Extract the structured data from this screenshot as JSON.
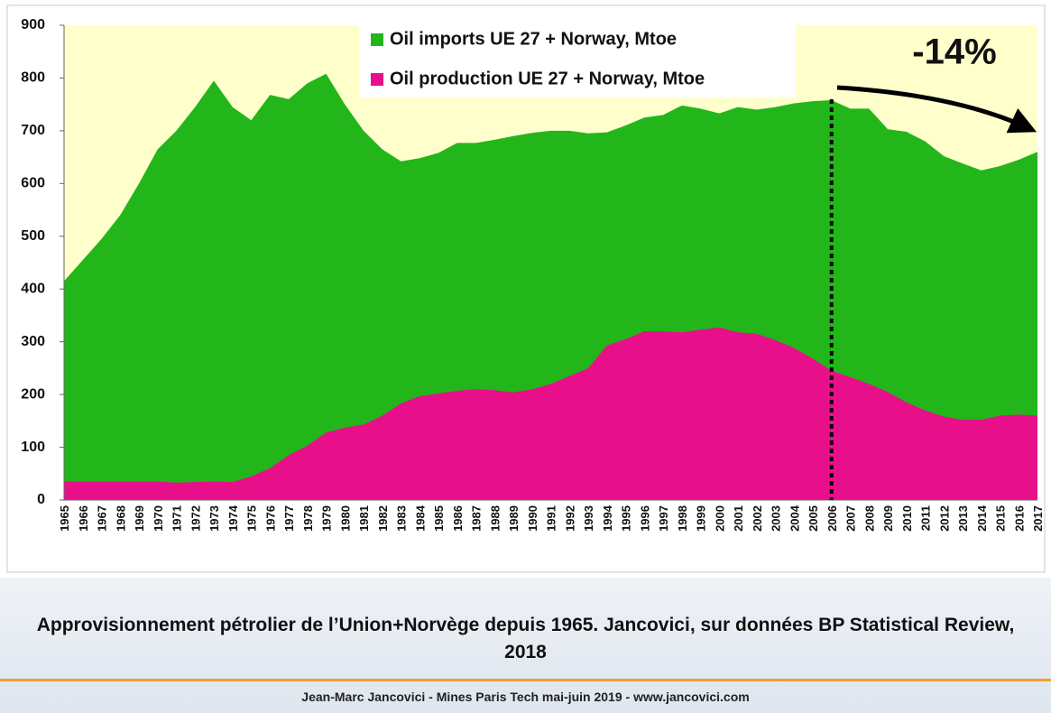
{
  "chart_data": {
    "type": "stacked_area",
    "categories": [
      "1965",
      "1966",
      "1967",
      "1968",
      "1969",
      "1970",
      "1971",
      "1972",
      "1973",
      "1974",
      "1975",
      "1976",
      "1977",
      "1978",
      "1979",
      "1980",
      "1981",
      "1982",
      "1983",
      "1984",
      "1985",
      "1986",
      "1987",
      "1988",
      "1989",
      "1990",
      "1991",
      "1992",
      "1993",
      "1994",
      "1995",
      "1996",
      "1997",
      "1998",
      "1999",
      "2000",
      "2001",
      "2002",
      "2003",
      "2004",
      "2005",
      "2006",
      "2007",
      "2008",
      "2009",
      "2010",
      "2011",
      "2012",
      "2013",
      "2014",
      "2015",
      "2016",
      "2017"
    ],
    "series": [
      {
        "name": "Oil production UE 27 + Norway, Mtoe",
        "color": "#e8108a",
        "values": [
          35,
          35,
          35,
          35,
          35,
          35,
          33,
          34,
          35,
          34,
          45,
          60,
          85,
          103,
          128,
          137,
          143,
          160,
          183,
          197,
          202,
          207,
          210,
          208,
          204,
          210,
          220,
          235,
          250,
          293,
          305,
          320,
          320,
          318,
          323,
          327,
          318,
          315,
          303,
          288,
          268,
          245,
          233,
          220,
          205,
          185,
          170,
          158,
          152,
          152,
          160,
          162,
          160
        ]
      },
      {
        "name": "Oil imports UE 27 + Norway, Mtoe",
        "color": "#22b61a",
        "values": [
          380,
          420,
          460,
          505,
          565,
          630,
          667,
          711,
          760,
          711,
          675,
          708,
          675,
          687,
          680,
          613,
          557,
          505,
          459,
          451,
          456,
          470,
          467,
          475,
          486,
          486,
          480,
          465,
          445,
          404,
          405,
          405,
          410,
          430,
          419,
          406,
          427,
          425,
          442,
          464,
          488,
          513,
          509,
          522,
          498,
          513,
          510,
          494,
          486,
          473,
          473,
          483,
          500
        ]
      }
    ],
    "ylim": [
      0,
      900
    ],
    "yticks": [
      0,
      100,
      200,
      300,
      400,
      500,
      600,
      700,
      800,
      900
    ],
    "vline_category": "2006",
    "annotation": "-14%",
    "caption": "Approvisionnement pétrolier de l’Union+Norvège depuis 1965. Jancovici, sur données BP Statistical Review, 2018",
    "footer": "Jean-Marc Jancovici - Mines Paris Tech mai-juin 2019 - www.jancovici.com"
  }
}
